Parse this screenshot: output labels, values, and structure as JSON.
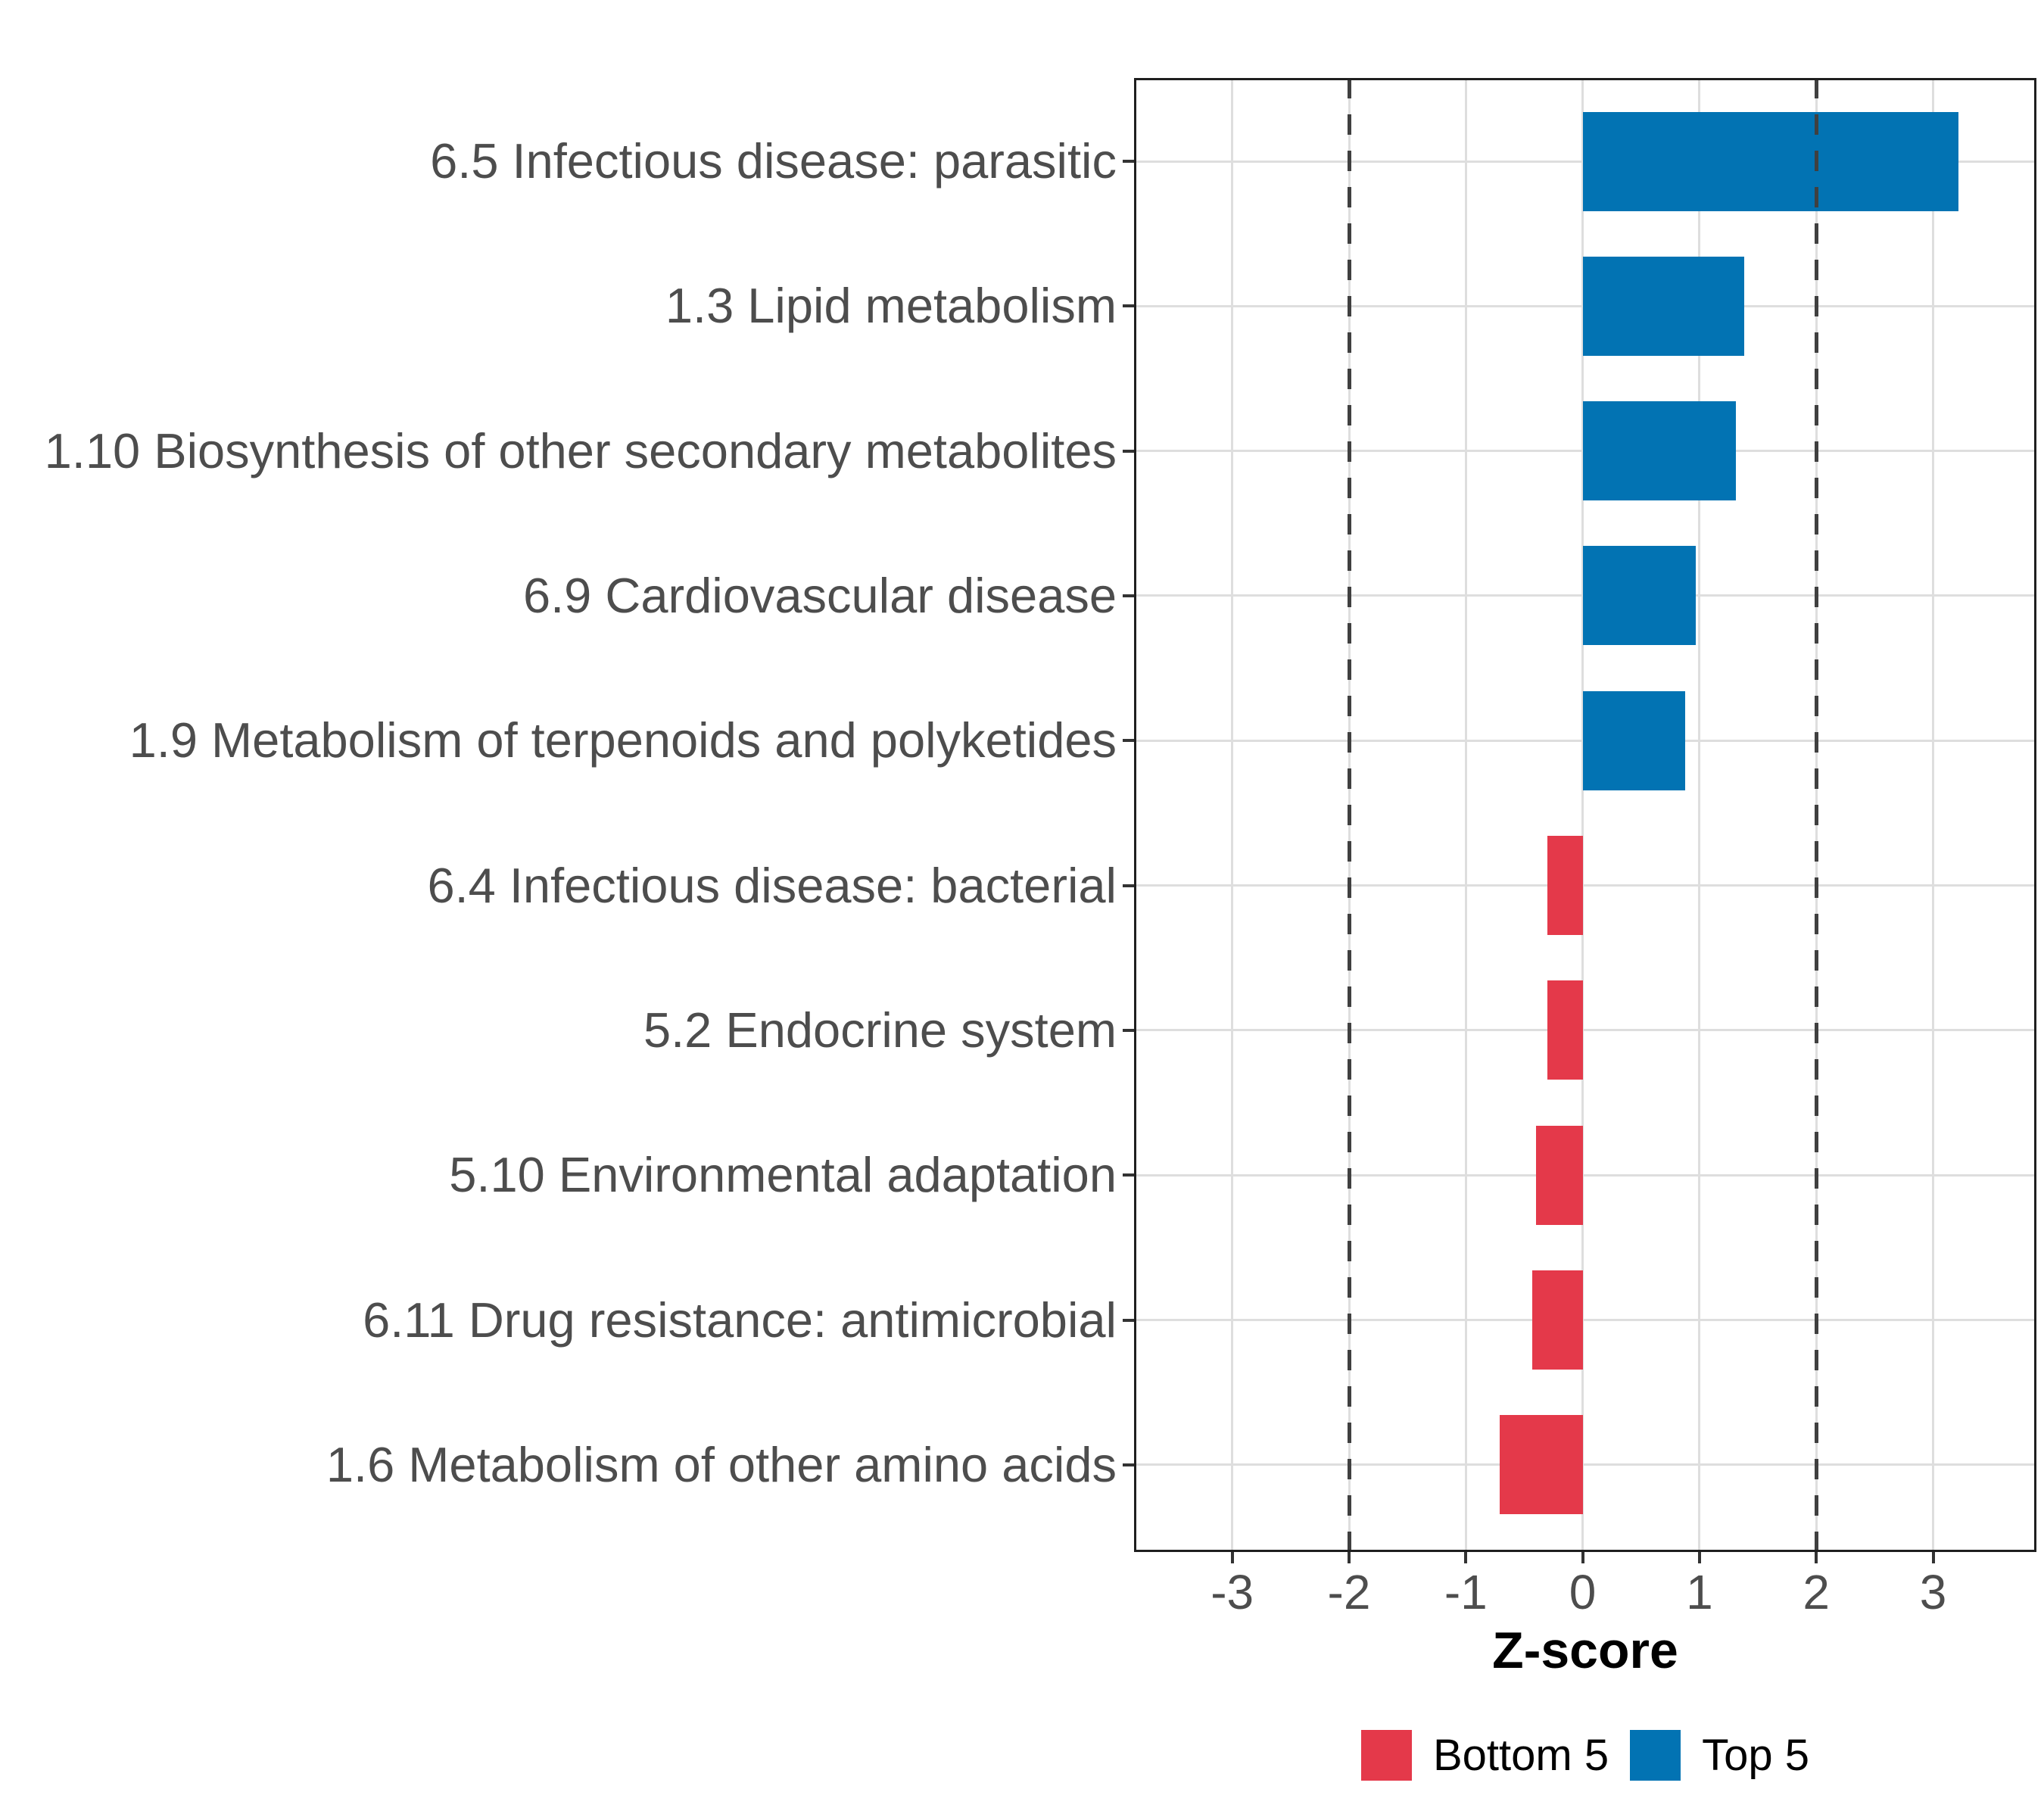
{
  "figure": {
    "background": "#FFFFFF"
  },
  "chart_data": {
    "type": "bar",
    "orientation": "horizontal",
    "title": "",
    "xlabel": "Z-score",
    "ylabel": "",
    "grid": "major",
    "legend_position": "bottom",
    "xlim": [
      -3.84,
      3.88
    ],
    "x_ticks": [
      -3,
      -2,
      -1,
      0,
      1,
      2,
      3
    ],
    "reference_lines": [
      -2,
      2
    ],
    "reference_line_style": "dashed",
    "items": [
      {
        "label": "6.5 Infectious disease: parasitic",
        "value": 3.22,
        "group": "Top 5"
      },
      {
        "label": "1.3 Lipid metabolism",
        "value": 1.38,
        "group": "Top 5"
      },
      {
        "label": "1.10 Biosynthesis of other secondary metabolites",
        "value": 1.31,
        "group": "Top 5"
      },
      {
        "label": "6.9 Cardiovascular disease",
        "value": 0.97,
        "group": "Top 5"
      },
      {
        "label": "1.9 Metabolism of terpenoids and polyketides",
        "value": 0.88,
        "group": "Top 5"
      },
      {
        "label": "6.4 Infectious disease: bacterial",
        "value": -0.3,
        "group": "Bottom 5"
      },
      {
        "label": "5.2 Endocrine system",
        "value": -0.3,
        "group": "Bottom 5"
      },
      {
        "label": "5.10 Environmental adaptation",
        "value": -0.4,
        "group": "Bottom 5"
      },
      {
        "label": "6.11 Drug resistance: antimicrobial",
        "value": -0.43,
        "group": "Bottom 5"
      },
      {
        "label": "1.6 Metabolism of other amino acids",
        "value": -0.71,
        "group": "Bottom 5"
      }
    ],
    "series_colors": {
      "Bottom 5": "#E4394A",
      "Top 5": "#0273B3"
    },
    "legend": [
      {
        "label": "Bottom 5",
        "color": "#E4394A"
      },
      {
        "label": "Top 5",
        "color": "#0273B3"
      }
    ]
  },
  "style_colors": {
    "grid": "#DEDEDE",
    "panel_border": "#1F1F1F",
    "axis_text": "#4D4D4D",
    "tick_mark": "#333333",
    "reference_line": "#404040"
  }
}
